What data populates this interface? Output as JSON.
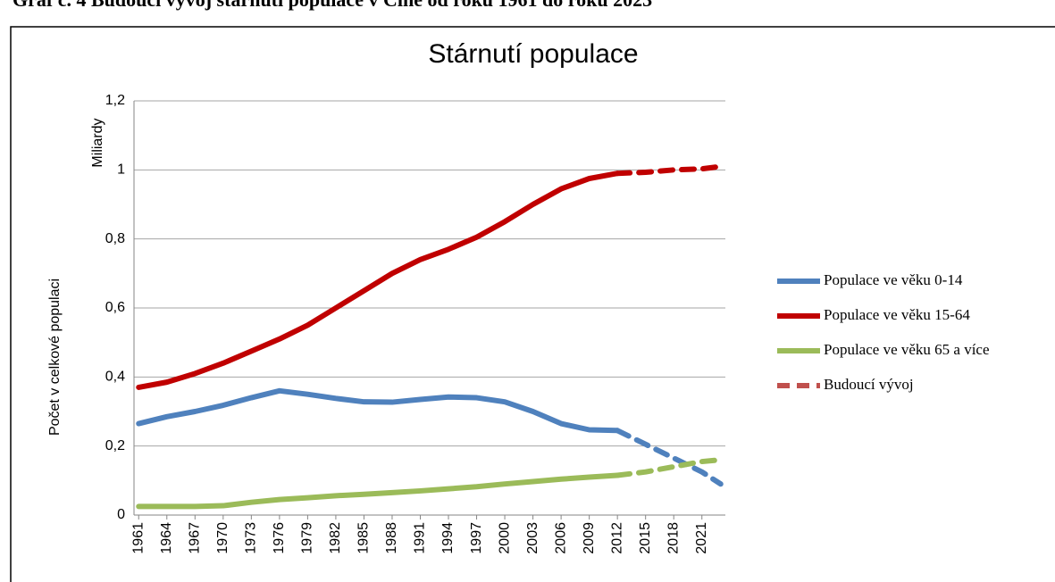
{
  "caption": "Graf č. 4 Budoucí vývoj stárnutí populace v Číně od roku 1961 do roku 2023",
  "chart_data": {
    "type": "line",
    "title": "Stárnutí populace",
    "y_label": "Počet v celkové populaci",
    "y_unit": "Miliardy",
    "x": [
      1961,
      1964,
      1967,
      1970,
      1973,
      1976,
      1979,
      1982,
      1985,
      1988,
      1991,
      1994,
      1997,
      2000,
      2003,
      2006,
      2009,
      2012,
      2015,
      2018,
      2021,
      2023
    ],
    "xlim": [
      1960.5,
      2023.5
    ],
    "xticks": [
      1961,
      1964,
      1967,
      1970,
      1973,
      1976,
      1979,
      1982,
      1985,
      1988,
      1991,
      1994,
      1997,
      2000,
      2003,
      2006,
      2009,
      2012,
      2015,
      2018,
      2021
    ],
    "ylim": [
      0,
      1.2
    ],
    "yticks": [
      0,
      {
        "value": 0.2,
        "label": "0,2"
      },
      {
        "value": 0.4,
        "label": "0,4"
      },
      {
        "value": 0.6,
        "label": "0,6"
      },
      {
        "value": 0.8,
        "label": "0,8"
      },
      1,
      {
        "value": 1.2,
        "label": "1,2"
      }
    ],
    "grid": true,
    "series": [
      {
        "name": "Populace ve věku 0-14",
        "color": "#4f81bd",
        "values": [
          0.265,
          0.285,
          0.3,
          0.318,
          0.34,
          0.36,
          0.35,
          0.338,
          0.328,
          0.327,
          0.335,
          0.342,
          0.34,
          0.328,
          0.3,
          0.265,
          0.247,
          0.245,
          null,
          null,
          null,
          null
        ],
        "forecast_values": [
          null,
          null,
          null,
          null,
          null,
          null,
          null,
          null,
          null,
          null,
          null,
          null,
          null,
          null,
          null,
          null,
          null,
          0.245,
          0.205,
          0.165,
          0.125,
          0.09
        ]
      },
      {
        "name": "Populace ve věku 15-64",
        "color": "#c00000",
        "values": [
          0.37,
          0.385,
          0.41,
          0.44,
          0.475,
          0.51,
          0.55,
          0.6,
          0.65,
          0.7,
          0.74,
          0.77,
          0.805,
          0.85,
          0.9,
          0.945,
          0.975,
          0.99,
          null,
          null,
          null,
          null
        ],
        "forecast_values": [
          null,
          null,
          null,
          null,
          null,
          null,
          null,
          null,
          null,
          null,
          null,
          null,
          null,
          null,
          null,
          null,
          null,
          0.99,
          0.993,
          1.0,
          1.003,
          1.01
        ]
      },
      {
        "name": "Populace ve věku 65 a více",
        "color": "#9bbb59",
        "values": [
          0.025,
          0.025,
          0.025,
          0.027,
          0.037,
          0.045,
          0.05,
          0.056,
          0.06,
          0.065,
          0.07,
          0.076,
          0.082,
          0.09,
          0.097,
          0.104,
          0.11,
          0.115,
          null,
          null,
          null,
          null
        ],
        "forecast_values": [
          null,
          null,
          null,
          null,
          null,
          null,
          null,
          null,
          null,
          null,
          null,
          null,
          null,
          null,
          null,
          null,
          null,
          0.115,
          0.125,
          0.14,
          0.155,
          0.16
        ]
      }
    ],
    "forecast": {
      "name": "Budoucí vývoj",
      "color": "#c0504d"
    }
  }
}
